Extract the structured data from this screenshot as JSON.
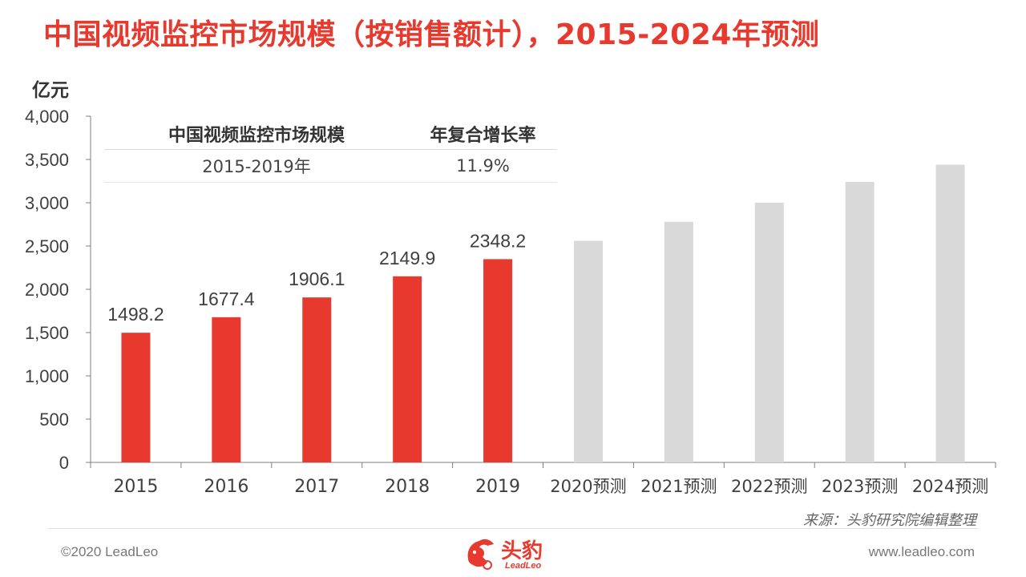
{
  "title": "中国视频监控市场规模（按销售额计），2015-2024年预测",
  "colors": {
    "accent": "#e8392e",
    "forecast": "#d9d9d9",
    "axis": "#7f7f7f",
    "text": "#404040"
  },
  "cagr_table": {
    "header_market": "中国视频监控市场规模",
    "header_rate": "年复合增长率",
    "period": "2015-2019年",
    "rate": "11.9%"
  },
  "source": "来源：头豹研究院编辑整理",
  "footer": {
    "copyright": "©2020 LeadLeo",
    "website": "www.leadleo.com",
    "logo_cn": "头豹",
    "logo_en": "LeadLeo"
  },
  "chart_data": {
    "type": "bar",
    "ylabel": "亿元",
    "ylim": [
      0,
      4000
    ],
    "yticks": [
      0,
      500,
      1000,
      1500,
      2000,
      2500,
      3000,
      3500,
      4000
    ],
    "ytick_labels": [
      "0",
      "500",
      "1,000",
      "1,500",
      "2,000",
      "2,500",
      "3,000",
      "3,500",
      "4,000"
    ],
    "categories": [
      "2015",
      "2016",
      "2017",
      "2018",
      "2019",
      "2020预测",
      "2021预测",
      "2022预测",
      "2023预测",
      "2024预测"
    ],
    "values": [
      1498.2,
      1677.4,
      1906.1,
      2149.9,
      2348.2,
      2560,
      2780,
      3000,
      3240,
      3440
    ],
    "forecast": [
      false,
      false,
      false,
      false,
      false,
      true,
      true,
      true,
      true,
      true
    ],
    "data_labels": [
      "1498.2",
      "1677.4",
      "1906.1",
      "2149.9",
      "2348.2",
      "",
      "",
      "",
      "",
      ""
    ]
  }
}
